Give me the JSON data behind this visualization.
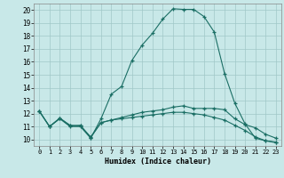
{
  "bg_color": "#c8e8e8",
  "grid_color": "#a0c8c8",
  "line_color": "#1a6e64",
  "xlabel": "Humidex (Indice chaleur)",
  "xlim": [
    -0.5,
    23.5
  ],
  "ylim": [
    9.5,
    20.5
  ],
  "xticks": [
    0,
    1,
    2,
    3,
    4,
    5,
    6,
    7,
    8,
    9,
    10,
    11,
    12,
    13,
    14,
    15,
    16,
    17,
    18,
    19,
    20,
    21,
    22,
    23
  ],
  "yticks": [
    10,
    11,
    12,
    13,
    14,
    15,
    16,
    17,
    18,
    19,
    20
  ],
  "lines": [
    {
      "x": [
        0,
        1,
        2,
        3,
        4,
        5,
        6,
        7,
        8,
        9,
        10,
        11,
        12,
        13,
        14,
        15,
        16,
        17,
        18,
        19,
        20,
        21,
        22,
        23
      ],
      "y": [
        12.2,
        11.0,
        11.6,
        11.0,
        11.0,
        10.1,
        11.6,
        13.5,
        14.1,
        16.1,
        17.3,
        18.2,
        19.3,
        20.1,
        20.05,
        20.05,
        19.5,
        18.3,
        15.1,
        12.8,
        11.2,
        10.1,
        9.9,
        9.8
      ]
    },
    {
      "x": [
        0,
        1,
        2,
        3,
        4,
        5,
        6,
        7,
        8,
        9,
        10,
        11,
        12,
        13,
        14,
        15,
        16,
        17,
        18,
        19,
        20,
        21,
        22,
        23
      ],
      "y": [
        12.2,
        11.0,
        11.65,
        11.1,
        11.05,
        10.2,
        11.3,
        11.5,
        11.7,
        11.9,
        12.1,
        12.2,
        12.3,
        12.5,
        12.6,
        12.4,
        12.4,
        12.4,
        12.3,
        11.6,
        11.15,
        10.9,
        10.4,
        10.1
      ]
    },
    {
      "x": [
        0,
        1,
        2,
        3,
        4,
        5,
        6,
        7,
        8,
        9,
        10,
        11,
        12,
        13,
        14,
        15,
        16,
        17,
        18,
        19,
        20,
        21,
        22,
        23
      ],
      "y": [
        12.2,
        11.0,
        11.65,
        11.05,
        11.1,
        10.15,
        11.3,
        11.5,
        11.6,
        11.7,
        11.8,
        11.9,
        12.0,
        12.1,
        12.1,
        12.0,
        11.9,
        11.7,
        11.5,
        11.1,
        10.7,
        10.2,
        9.9,
        9.75
      ]
    }
  ]
}
